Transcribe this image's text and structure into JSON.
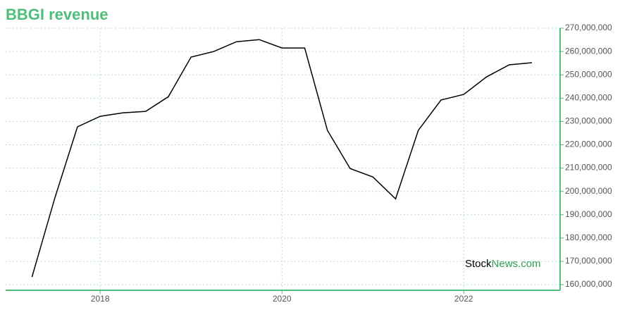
{
  "chart_data": {
    "type": "line",
    "title": "BBGI revenue",
    "watermark": {
      "first": "Stock",
      "second": "News.com"
    },
    "x": [
      2017.25,
      2017.5,
      2017.75,
      2018,
      2018.25,
      2018.5,
      2018.75,
      2019,
      2019.25,
      2019.5,
      2019.75,
      2020,
      2020.25,
      2020.5,
      2020.75,
      2021,
      2021.25,
      2021.5,
      2021.75,
      2022,
      2022.25,
      2022.5,
      2022.75
    ],
    "series": [
      {
        "color": "#000000",
        "values": [
          163300000,
          197000000,
          227700000,
          232200000,
          233700000,
          234300000,
          240600000,
          257600000,
          260000000,
          264200000,
          265100000,
          261500000,
          261500000,
          226200000,
          209800000,
          206200000,
          196800000,
          226200000,
          239200000,
          241600000,
          249100000,
          254300000,
          255200000
        ]
      }
    ],
    "xlim": [
      2016.96,
      2023.06
    ],
    "xticks": [
      2018,
      2020,
      2022
    ],
    "ylim": [
      157600000,
      270000000
    ],
    "yticks": [
      {
        "value": 160000000,
        "label": "160,000,000"
      },
      {
        "value": 170000000,
        "label": "170,000,000"
      },
      {
        "value": 180000000,
        "label": "180,000,000"
      },
      {
        "value": 190000000,
        "label": "190,000,000"
      },
      {
        "value": 200000000,
        "label": "200,000,000"
      },
      {
        "value": 210000000,
        "label": "210,000,000"
      },
      {
        "value": 220000000,
        "label": "220,000,000"
      },
      {
        "value": 230000000,
        "label": "230,000,000"
      },
      {
        "value": 240000000,
        "label": "240,000,000"
      },
      {
        "value": 250000000,
        "label": "250,000,000"
      },
      {
        "value": 260000000,
        "label": "260,000,000"
      },
      {
        "value": 270000000,
        "label": "270,000,000"
      }
    ],
    "grid": true
  }
}
